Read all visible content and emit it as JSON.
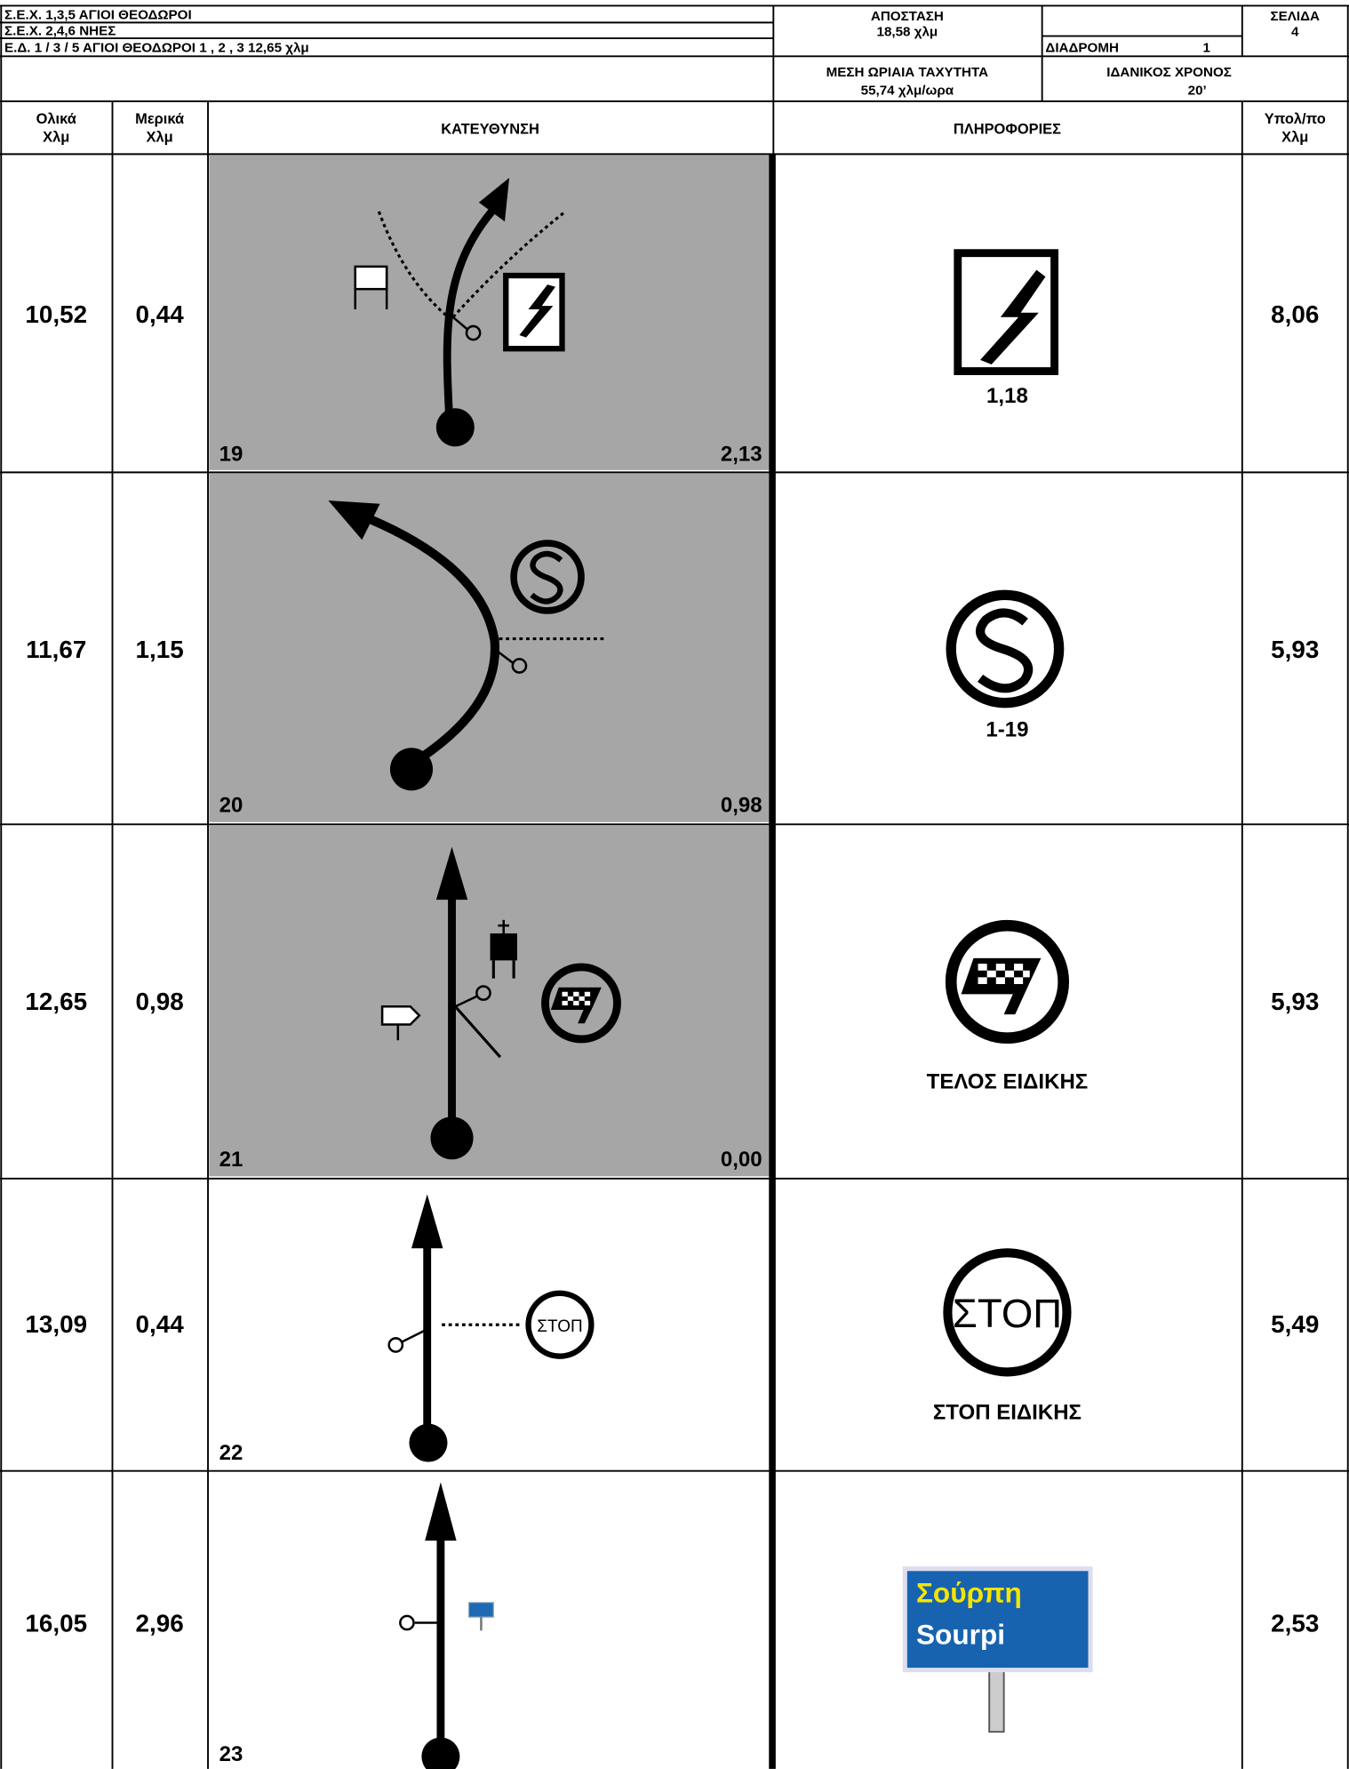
{
  "header": {
    "line1": "Σ.Ε.Χ. 1,3,5 ΑΓΙΟΙ ΘΕΟΔΩΡΟΙ",
    "line2": "Σ.Ε.Χ. 2,4,6 ΝΗΕΣ",
    "line3": "Ε.Δ. 1 / 3 / 5  ΑΓΙΟΙ ΘΕΟΔΩΡΟΙ 1 , 2 , 3 12,65 χλμ",
    "distance_label": "ΑΠΟΣΤΑΣΗ",
    "distance": "18,58 χλμ",
    "route_label": "ΔΙΑΔΡΟΜΗ",
    "route": "1",
    "page_label": "ΣΕΛΙΔΑ",
    "page": "4",
    "speed_label": "ΜΕΣΗ ΩΡΙΑΙΑ ΤΑΧΥΤΗΤΑ",
    "speed": "55,74 χλμ/ωρα",
    "ideal_time_label": "ΙΔΑΝΙΚΟΣ ΧΡΟΝΟΣ",
    "ideal_time": "20’"
  },
  "columns": {
    "total": [
      "Ολικά",
      "Χλμ"
    ],
    "partial": [
      "Μερικά",
      "Χλμ"
    ],
    "direction": "ΚΑΤΕΥΘΥΝΣΗ",
    "info": "ΠΛΗΡΟΦΟΡΙΕΣ",
    "remaining": [
      "Υπολ/πο",
      "Χλμ"
    ]
  },
  "rows": [
    {
      "total": "10,52",
      "partial": "0,44",
      "number": "19",
      "distance": "2,13",
      "info": "1,18",
      "remaining": "8,06"
    },
    {
      "total": "11,67",
      "partial": "1,15",
      "number": "20",
      "distance": "0,98",
      "info": "1-19",
      "remaining": "5,93"
    },
    {
      "total": "12,65",
      "partial": "0,98",
      "number": "21",
      "distance": "0,00",
      "info": "ΤΕΛΟΣ ΕΙΔΙΚΗΣ",
      "remaining": "5,93"
    },
    {
      "total": "13,09",
      "partial": "0,44",
      "number": "22",
      "diagram_sign": "ΣΤΟΠ",
      "info_sign": "ΣΤΟΠ",
      "info": "ΣΤΟΠ ΕΙΔΙΚΗΣ",
      "remaining": "5,49"
    },
    {
      "total": "16,05",
      "partial": "2,96",
      "number": "23",
      "info_sign": [
        "Σούρπη",
        "Sourpi"
      ],
      "remaining": "2,53"
    }
  ]
}
